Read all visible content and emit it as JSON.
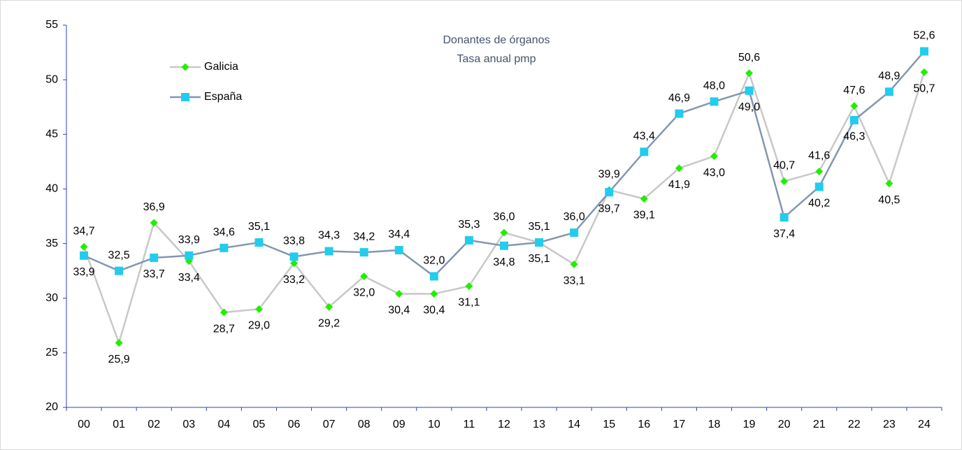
{
  "chart_data": {
    "type": "line",
    "title": "Donantes de órganos",
    "subtitle": "Tasa anual pmp",
    "categories": [
      "00",
      "01",
      "02",
      "03",
      "04",
      "05",
      "06",
      "07",
      "08",
      "09",
      "10",
      "11",
      "12",
      "13",
      "14",
      "15",
      "16",
      "17",
      "18",
      "19",
      "20",
      "21",
      "22",
      "23",
      "24"
    ],
    "ylim": [
      20,
      55
    ],
    "yticks": [
      20,
      25,
      30,
      35,
      40,
      45,
      50,
      55
    ],
    "legend": "top-left",
    "series": [
      {
        "name": "Galicia",
        "color": "#c8c8c8",
        "marker_color": "#22ee00",
        "marker": "diamond",
        "values": [
          34.7,
          25.9,
          36.9,
          33.4,
          28.7,
          29.0,
          33.2,
          29.2,
          32.0,
          30.4,
          30.4,
          31.1,
          36.0,
          35.1,
          33.1,
          39.9,
          39.1,
          41.9,
          43.0,
          50.6,
          40.7,
          41.6,
          47.6,
          40.5,
          50.7
        ],
        "value_labels": [
          "34,7",
          "25,9",
          "36,9",
          "33,4",
          "28,7",
          "29,0",
          "33,2",
          "29,2",
          "32,0",
          "30,4",
          "30,4",
          "31,1",
          "36,0",
          "35,1",
          "33,1",
          "39,9",
          "39,1",
          "41,9",
          "43,0",
          "50,6",
          "40,7",
          "41,6",
          "47,6",
          "40,5",
          "50,7"
        ]
      },
      {
        "name": "España",
        "color": "#8496b0",
        "marker_color": "#22ccee",
        "marker": "square",
        "values": [
          33.9,
          32.5,
          33.7,
          33.9,
          34.6,
          35.1,
          33.8,
          34.3,
          34.2,
          34.4,
          32.0,
          35.3,
          34.8,
          35.1,
          36.0,
          39.7,
          43.4,
          46.9,
          48.0,
          49.0,
          37.4,
          40.2,
          46.3,
          48.9,
          52.6
        ],
        "value_labels": [
          "33,9",
          "32,5",
          "33,7",
          "33,9",
          "34,6",
          "35,1",
          "33,8",
          "34,3",
          "34,2",
          "34,4",
          "32,0",
          "35,3",
          "34,8",
          "35,1",
          "36,0",
          "39,7",
          "43,4",
          "46,9",
          "48,0",
          "49,0",
          "37,4",
          "40,2",
          "46,3",
          "48,9",
          "52,6"
        ]
      }
    ]
  }
}
